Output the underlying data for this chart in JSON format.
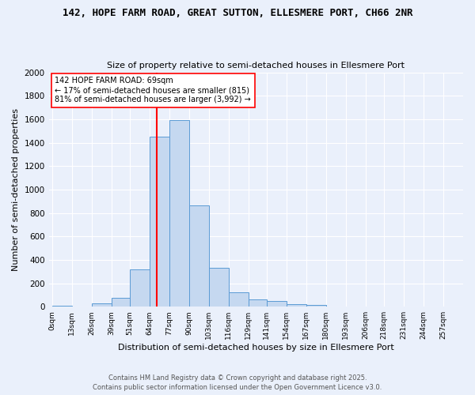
{
  "title_line1": "142, HOPE FARM ROAD, GREAT SUTTON, ELLESMERE PORT, CH66 2NR",
  "title_line2": "Size of property relative to semi-detached houses in Ellesmere Port",
  "xlabel": "Distribution of semi-detached houses by size in Ellesmere Port",
  "ylabel": "Number of semi-detached properties",
  "bar_labels": [
    "0sqm",
    "13sqm",
    "26sqm",
    "39sqm",
    "51sqm",
    "64sqm",
    "77sqm",
    "90sqm",
    "103sqm",
    "116sqm",
    "129sqm",
    "141sqm",
    "154sqm",
    "167sqm",
    "180sqm",
    "193sqm",
    "206sqm",
    "218sqm",
    "231sqm",
    "244sqm",
    "257sqm"
  ],
  "bar_values": [
    10,
    0,
    30,
    75,
    315,
    1450,
    1590,
    865,
    335,
    125,
    60,
    50,
    25,
    12,
    0,
    0,
    0,
    0,
    0,
    0,
    0
  ],
  "bar_color": "#c5d8f0",
  "bar_edge_color": "#5b9bd5",
  "vline_x": 69,
  "vline_color": "red",
  "annotation_title": "142 HOPE FARM ROAD: 69sqm",
  "annotation_line1": "← 17% of semi-detached houses are smaller (815)",
  "annotation_line2": "81% of semi-detached houses are larger (3,992) →",
  "annotation_box_color": "white",
  "annotation_box_edge": "red",
  "ylim": [
    0,
    2000
  ],
  "yticks": [
    0,
    200,
    400,
    600,
    800,
    1000,
    1200,
    1400,
    1600,
    1800,
    2000
  ],
  "footer_line1": "Contains HM Land Registry data © Crown copyright and database right 2025.",
  "footer_line2": "Contains public sector information licensed under the Open Government Licence v3.0.",
  "bg_color": "#eaf0fb",
  "plot_bg_color": "#eaf0fb"
}
